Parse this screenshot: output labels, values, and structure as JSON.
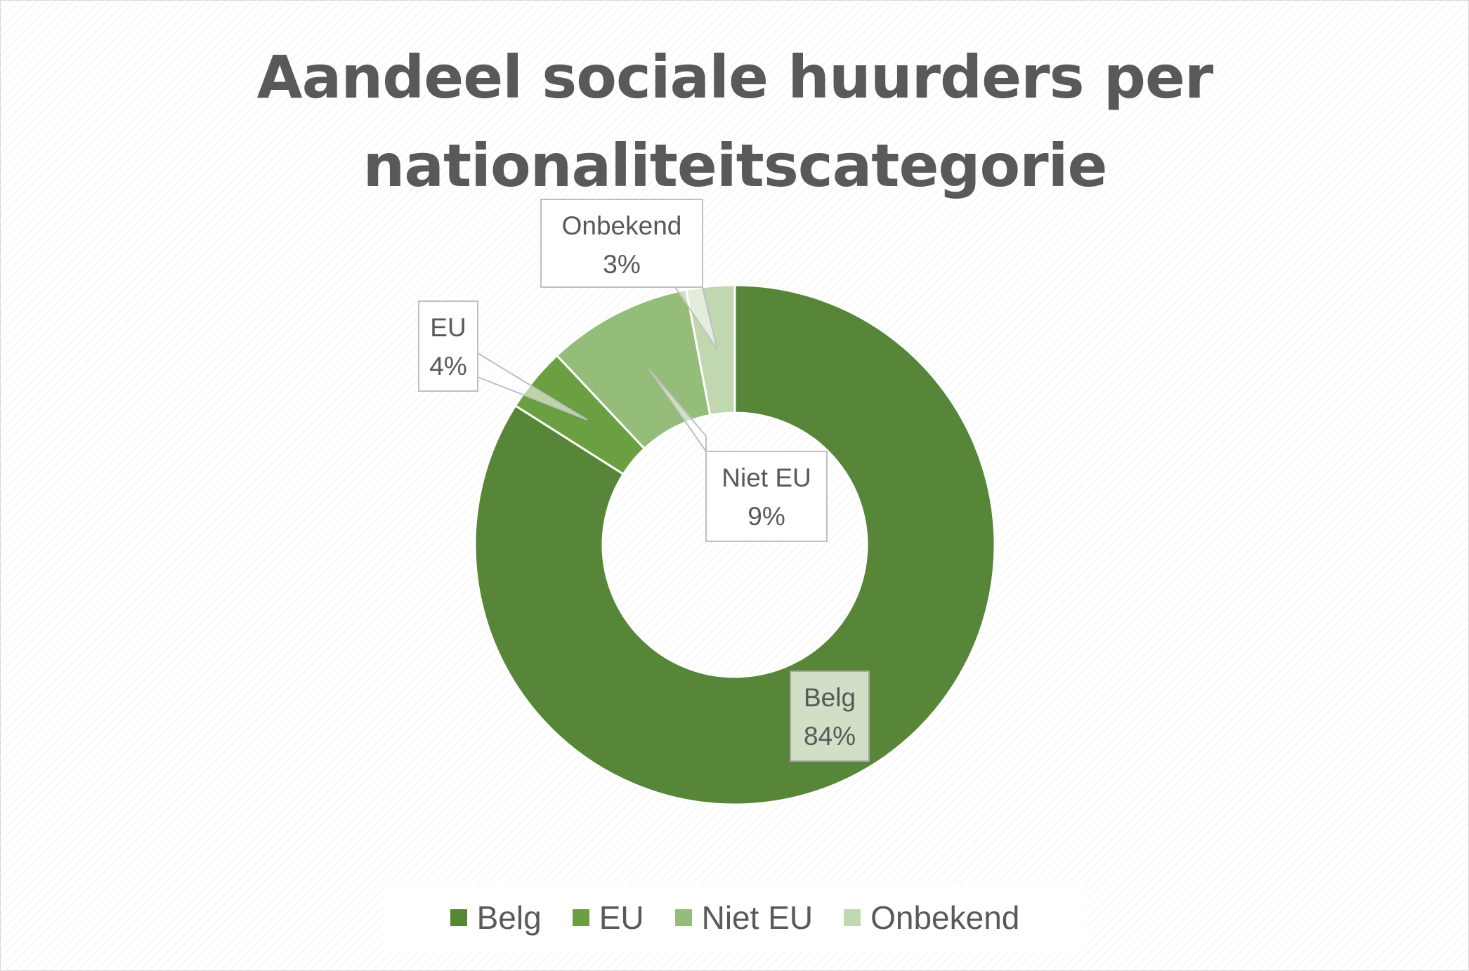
{
  "chart_data": {
    "type": "donut",
    "title": "Aandeel sociale huurders per nationaliteitscategorie",
    "categories": [
      "Belg",
      "EU",
      "Niet EU",
      "Onbekend"
    ],
    "values": [
      84,
      4,
      9,
      3
    ],
    "labels": [
      {
        "name": "Belg",
        "value": "84%"
      },
      {
        "name": "EU",
        "value": "4%"
      },
      {
        "name": "Niet EU",
        "value": "9%"
      },
      {
        "name": "Onbekend",
        "value": "3%"
      }
    ],
    "colors": [
      "#578638",
      "#6aa042",
      "#94bd79",
      "#c0d7b0"
    ],
    "legend_position": "bottom"
  }
}
